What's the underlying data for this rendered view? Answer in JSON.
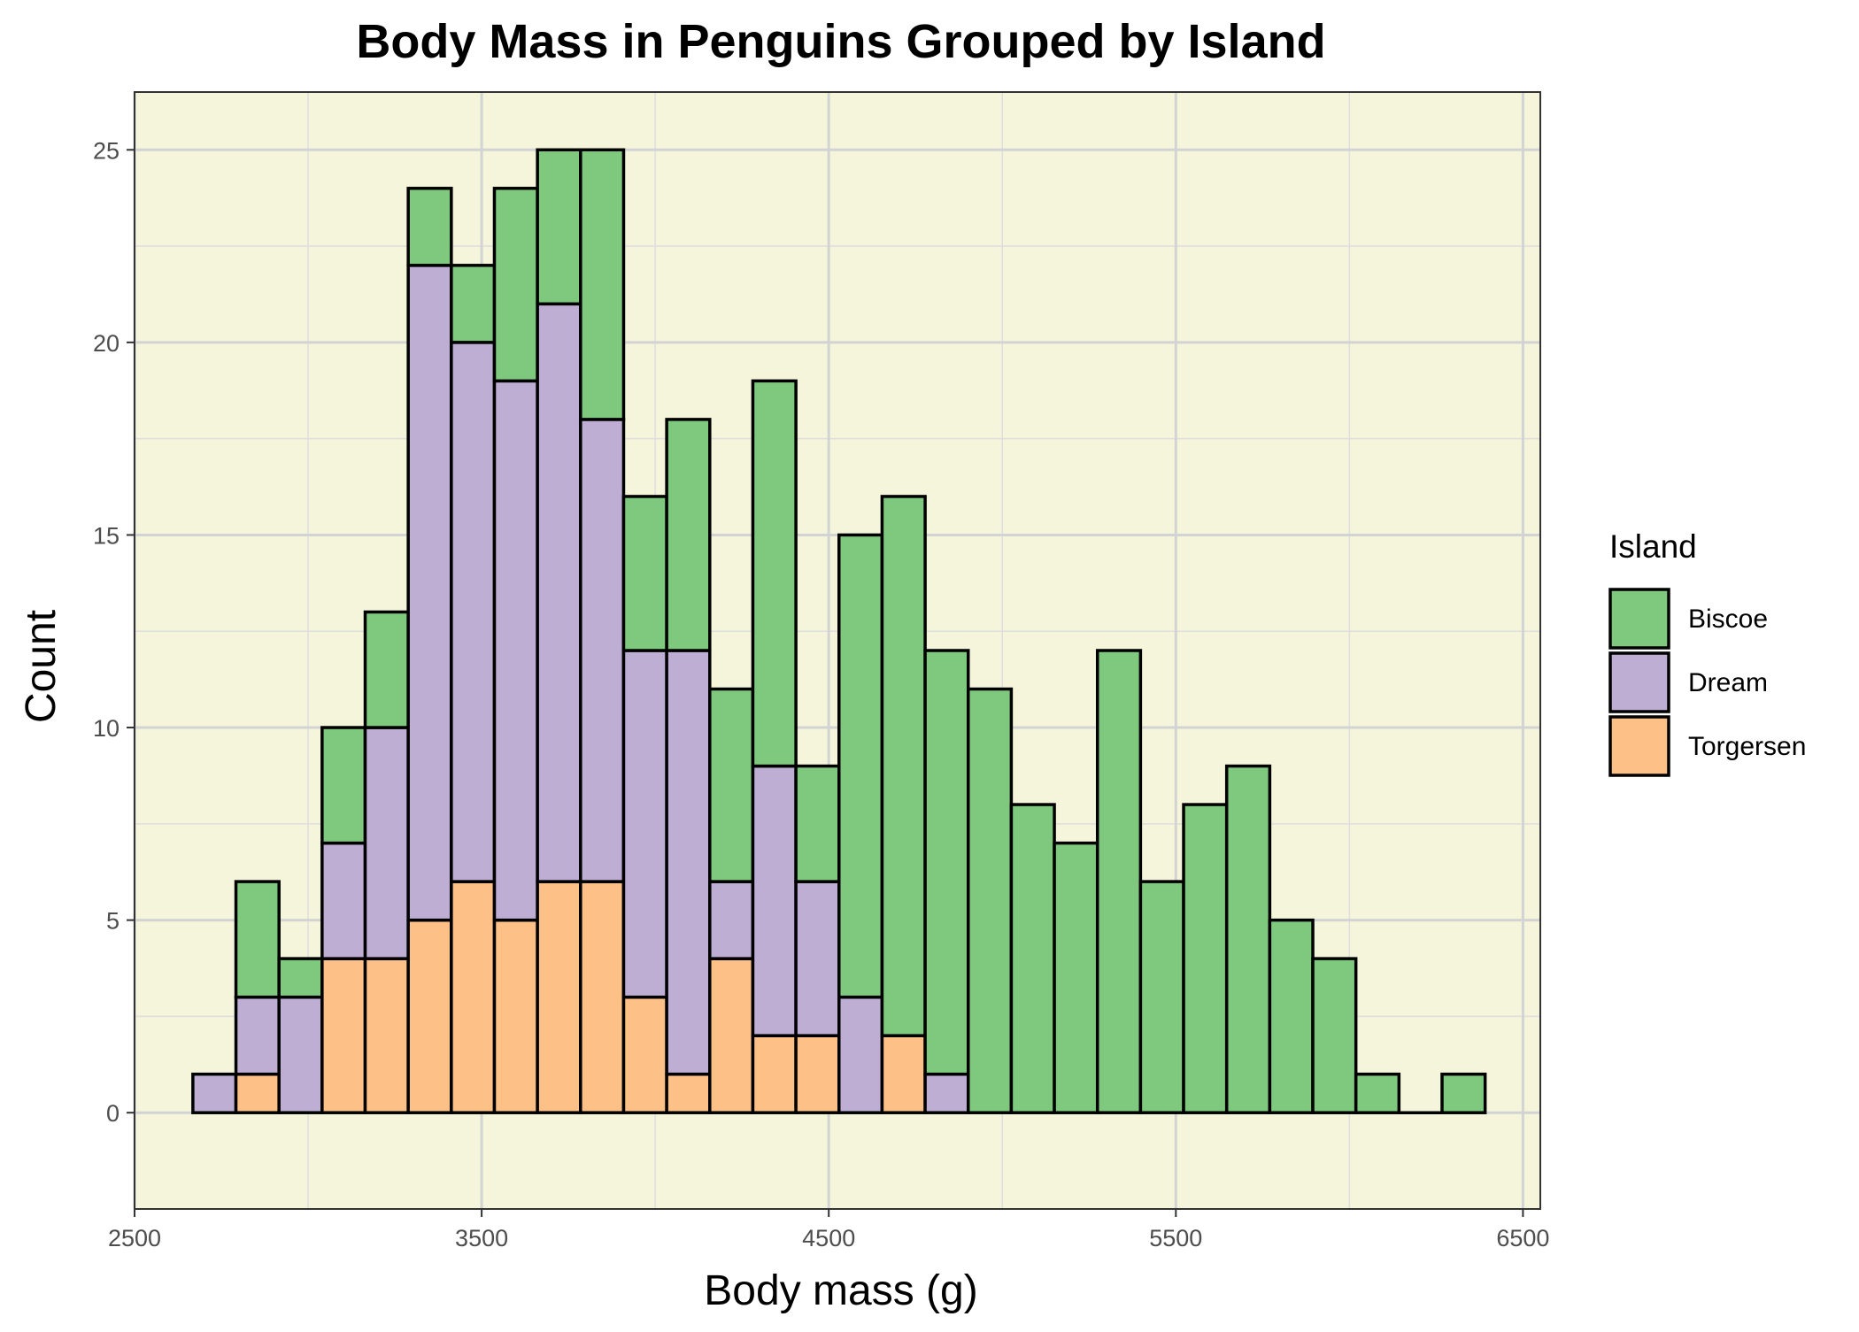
{
  "chart_data": {
    "type": "bar",
    "stacked": true,
    "title": "Body Mass in Penguins Grouped by Island",
    "xlabel": "Body mass (g)",
    "ylabel": "Count",
    "xlim": [
      2500,
      6550
    ],
    "ylim": [
      -2.5,
      26.5
    ],
    "xticks": [
      2500,
      3500,
      4500,
      5500,
      6500
    ],
    "yticks": [
      0,
      5,
      10,
      15,
      20,
      25
    ],
    "xtick_labels": [
      "2500",
      "3500",
      "4500",
      "5500",
      "6500"
    ],
    "ytick_labels": [
      "0",
      "5",
      "10",
      "15",
      "20",
      "25"
    ],
    "grid": true,
    "panel_background": "#f5f5dc",
    "bar_outline": "#000000",
    "bin_width": 124.1,
    "bin_start": 2668,
    "legend": {
      "title": "Island",
      "position": "right"
    },
    "series": [
      {
        "name": "Torgersen",
        "color": "#fdc086",
        "values": [
          0,
          1,
          0,
          4,
          4,
          5,
          6,
          5,
          6,
          6,
          3,
          1,
          4,
          2,
          2,
          0,
          2,
          0,
          0,
          0,
          0,
          0,
          0,
          0,
          0,
          0,
          0,
          0,
          0,
          0
        ]
      },
      {
        "name": "Dream",
        "color": "#beaed4",
        "values": [
          1,
          2,
          3,
          3,
          6,
          17,
          14,
          14,
          15,
          12,
          9,
          11,
          2,
          7,
          4,
          3,
          0,
          1,
          0,
          0,
          0,
          0,
          0,
          0,
          0,
          0,
          0,
          0,
          0,
          0
        ]
      },
      {
        "name": "Biscoe",
        "color": "#7fc97f",
        "values": [
          0,
          3,
          1,
          3,
          3,
          2,
          2,
          5,
          4,
          7,
          4,
          6,
          5,
          10,
          3,
          12,
          14,
          11,
          11,
          8,
          7,
          12,
          6,
          8,
          9,
          5,
          4,
          1,
          0,
          1
        ]
      }
    ]
  }
}
